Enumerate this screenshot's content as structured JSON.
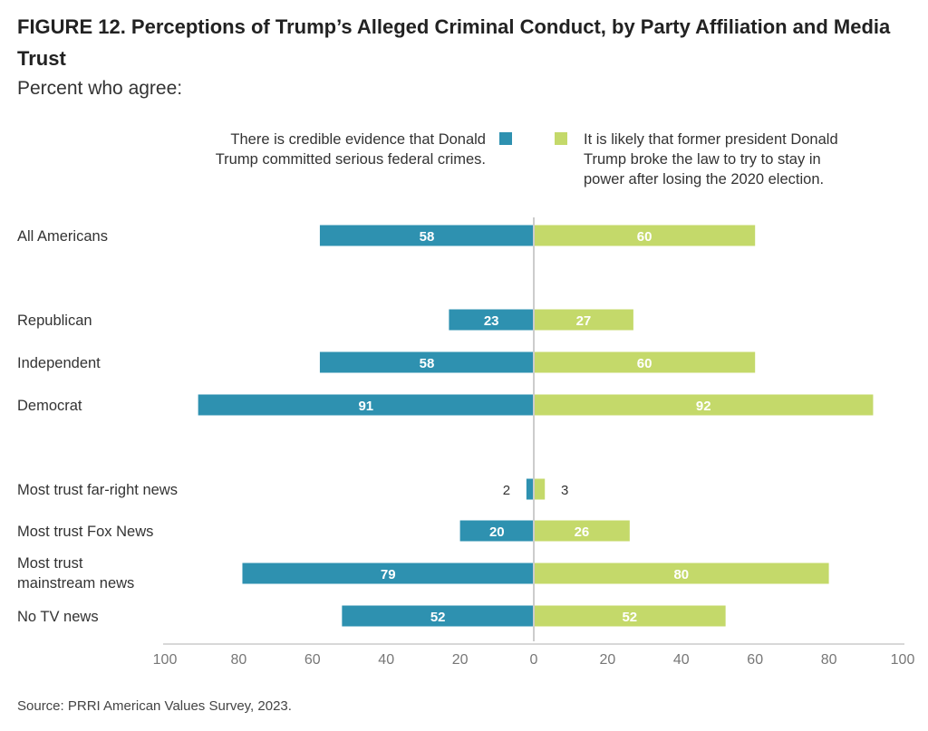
{
  "title": "FIGURE 12.  Perceptions of Trump’s Alleged Criminal Conduct, by Party Affiliation and Media Trust",
  "subtitle": "Percent who agree:",
  "source": "Source: PRRI American Values Survey, 2023.",
  "colors": {
    "left": "#2e91b0",
    "right": "#c4d96a",
    "axis": "#cccccc",
    "tick_text": "#777777"
  },
  "chart_data": {
    "type": "bar",
    "orientation": "horizontal-diverging",
    "categories": [
      "All Americans",
      "Republican",
      "Independent",
      "Democrat",
      "Most trust far-right news",
      "Most trust Fox News",
      "Most trust mainstream news",
      "No TV news"
    ],
    "category_lines": [
      [
        "All Americans"
      ],
      [
        "Republican"
      ],
      [
        "Independent"
      ],
      [
        "Democrat"
      ],
      [
        "Most trust far-right news"
      ],
      [
        "Most trust Fox News"
      ],
      [
        "Most trust",
        "mainstream news"
      ],
      [
        "No TV news"
      ]
    ],
    "series": [
      {
        "name": "There is credible evidence that Donald Trump committed serious federal crimes.",
        "name_lines": [
          "There is credible evidence that Donald",
          "Trump committed serious federal crimes."
        ],
        "values": [
          58,
          23,
          58,
          91,
          2,
          20,
          79,
          52
        ]
      },
      {
        "name": "It is likely that former president Donald Trump broke the law to try to stay in power after losing the 2020 election.",
        "name_lines": [
          "It is likely that former president Donald",
          "Trump broke the law to try to stay in",
          "power after losing the 2020 election."
        ],
        "values": [
          60,
          27,
          60,
          92,
          3,
          26,
          80,
          52
        ]
      }
    ],
    "xlim": [
      -100,
      100
    ],
    "x_tick_labels": [
      "100",
      "80",
      "60",
      "40",
      "20",
      "0",
      "20",
      "40",
      "60",
      "80",
      "100"
    ],
    "legend_position": "top",
    "grid": false
  }
}
